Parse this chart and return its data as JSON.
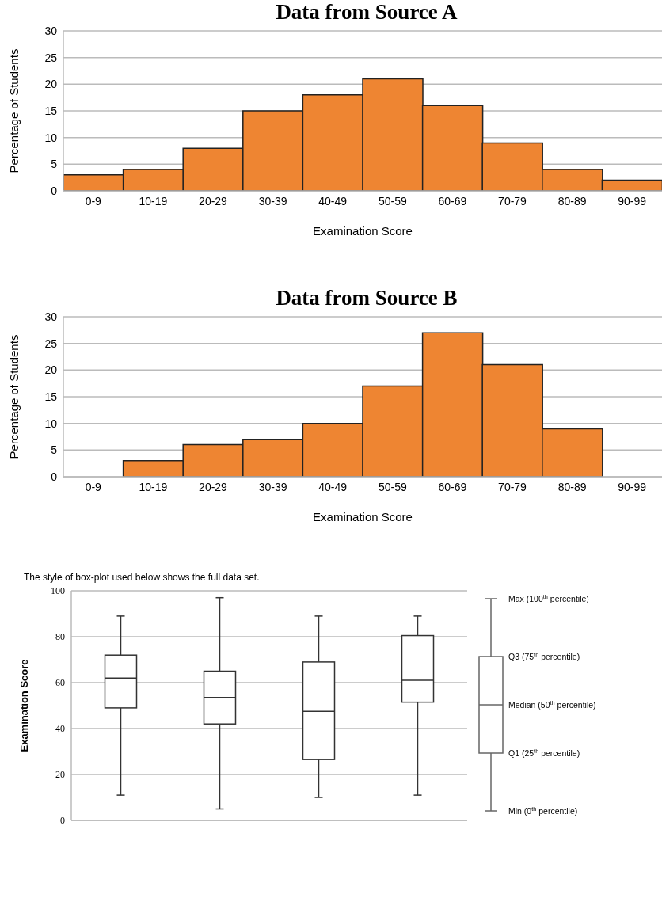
{
  "chart_data": [
    {
      "type": "bar",
      "title": "Data from Source A",
      "xlabel": "Examination Score",
      "ylabel": "Percentage of Students",
      "categories": [
        "0-9",
        "10-19",
        "20-29",
        "30-39",
        "40-49",
        "50-59",
        "60-69",
        "70-79",
        "80-89",
        "90-99"
      ],
      "values": [
        3,
        4,
        8,
        15,
        18,
        21,
        16,
        9,
        4,
        2
      ],
      "color": "#ee8532",
      "ylim": [
        0,
        30
      ],
      "yticks": [
        0,
        5,
        10,
        15,
        20,
        25,
        30
      ],
      "grid": "y"
    },
    {
      "type": "bar",
      "title": "Data from Source B",
      "xlabel": "Examination Score",
      "ylabel": "Percentage of Students",
      "categories": [
        "0-9",
        "10-19",
        "20-29",
        "30-39",
        "40-49",
        "50-59",
        "60-69",
        "70-79",
        "80-89",
        "90-99"
      ],
      "values": [
        0,
        3,
        6,
        7,
        10,
        17,
        27,
        21,
        9,
        0
      ],
      "color": "#ee8532",
      "ylim": [
        0,
        30
      ],
      "yticks": [
        0,
        5,
        10,
        15,
        20,
        25,
        30
      ],
      "grid": "y"
    },
    {
      "type": "box",
      "ylabel": "Examination Score",
      "categories": [
        null,
        null,
        null,
        null
      ],
      "boxes": [
        {
          "low": 11,
          "q1": 49,
          "median": 62,
          "q3": 72,
          "high": 89
        },
        {
          "low": 5,
          "q1": 42,
          "median": 53.5,
          "q3": 65,
          "high": 97
        },
        {
          "low": 10,
          "q1": 26.5,
          "median": 47.5,
          "q3": 69,
          "high": 89
        },
        {
          "low": 11,
          "q1": 51.5,
          "median": 61,
          "q3": 80.5,
          "high": 89
        }
      ],
      "ylim": [
        0,
        100
      ],
      "yticks": [
        0,
        20,
        40,
        60,
        80,
        100
      ],
      "grid": "y",
      "tick_labels": "y",
      "annotations": [
        "The style of box-plot used below shows the full data set.",
        "Max (100$^{th}$ percentile)",
        "Q3 (75$^{th}$ percentile)",
        "Median (50$^{th}$ percentile)",
        "Q1 (25$^{th}$ percentile)",
        "Min (0$^{th}$ percentile)"
      ]
    }
  ]
}
